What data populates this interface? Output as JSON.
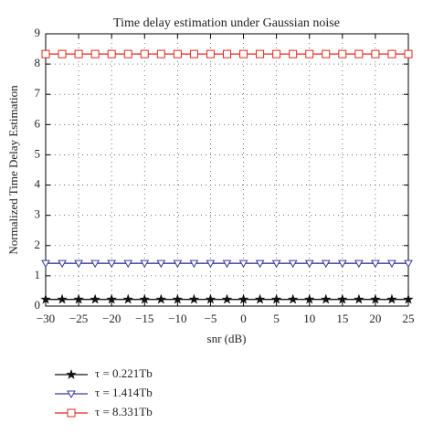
{
  "chart_data": {
    "type": "line",
    "title": "Time delay estimation under Gaussian noise",
    "x_label": "snr (dB)",
    "y_label": "Normalized Time Delay Estimation",
    "x": [
      -30,
      -27.5,
      -25,
      -22.5,
      -20,
      -17.5,
      -15,
      -12.5,
      -10,
      -7.5,
      -5,
      -2.5,
      0,
      2.5,
      5,
      7.5,
      10,
      12.5,
      15,
      17.5,
      20,
      22.5,
      25
    ],
    "series": [
      {
        "name": "τ = 0.221Tb",
        "color": "#111111",
        "marker": "star",
        "values": [
          0.221,
          0.221,
          0.221,
          0.221,
          0.221,
          0.221,
          0.221,
          0.221,
          0.221,
          0.221,
          0.221,
          0.221,
          0.221,
          0.221,
          0.221,
          0.221,
          0.221,
          0.221,
          0.221,
          0.221,
          0.221,
          0.221,
          0.221
        ]
      },
      {
        "name": "τ = 1.414Tb",
        "color": "#3b3b9e",
        "marker": "triangle-down",
        "values": [
          1.414,
          1.414,
          1.414,
          1.414,
          1.414,
          1.414,
          1.414,
          1.414,
          1.414,
          1.414,
          1.414,
          1.414,
          1.414,
          1.414,
          1.414,
          1.414,
          1.414,
          1.414,
          1.414,
          1.414,
          1.414,
          1.414,
          1.414
        ]
      },
      {
        "name": "τ = 8.331Tb",
        "color": "#e0281e",
        "marker": "square",
        "values": [
          8.331,
          8.331,
          8.331,
          8.331,
          8.331,
          8.331,
          8.331,
          8.331,
          8.331,
          8.331,
          8.331,
          8.331,
          8.331,
          8.331,
          8.331,
          8.331,
          8.331,
          8.331,
          8.331,
          8.331,
          8.331,
          8.331,
          8.331
        ]
      }
    ],
    "xlim": [
      -30,
      25
    ],
    "xticks": [
      {
        "value": -30,
        "label": "−30"
      },
      {
        "value": -25,
        "label": "−25"
      },
      {
        "value": -20,
        "label": "−20"
      },
      {
        "value": -15,
        "label": "−15"
      },
      {
        "value": -10,
        "label": "−10"
      },
      {
        "value": -5,
        "label": "−5"
      },
      0,
      5,
      10,
      15,
      20,
      25
    ],
    "ylim": [
      0,
      9
    ],
    "yticks": [
      0,
      1,
      2,
      3,
      4,
      5,
      6,
      7,
      8,
      9
    ],
    "grid": true,
    "legend": "below"
  }
}
